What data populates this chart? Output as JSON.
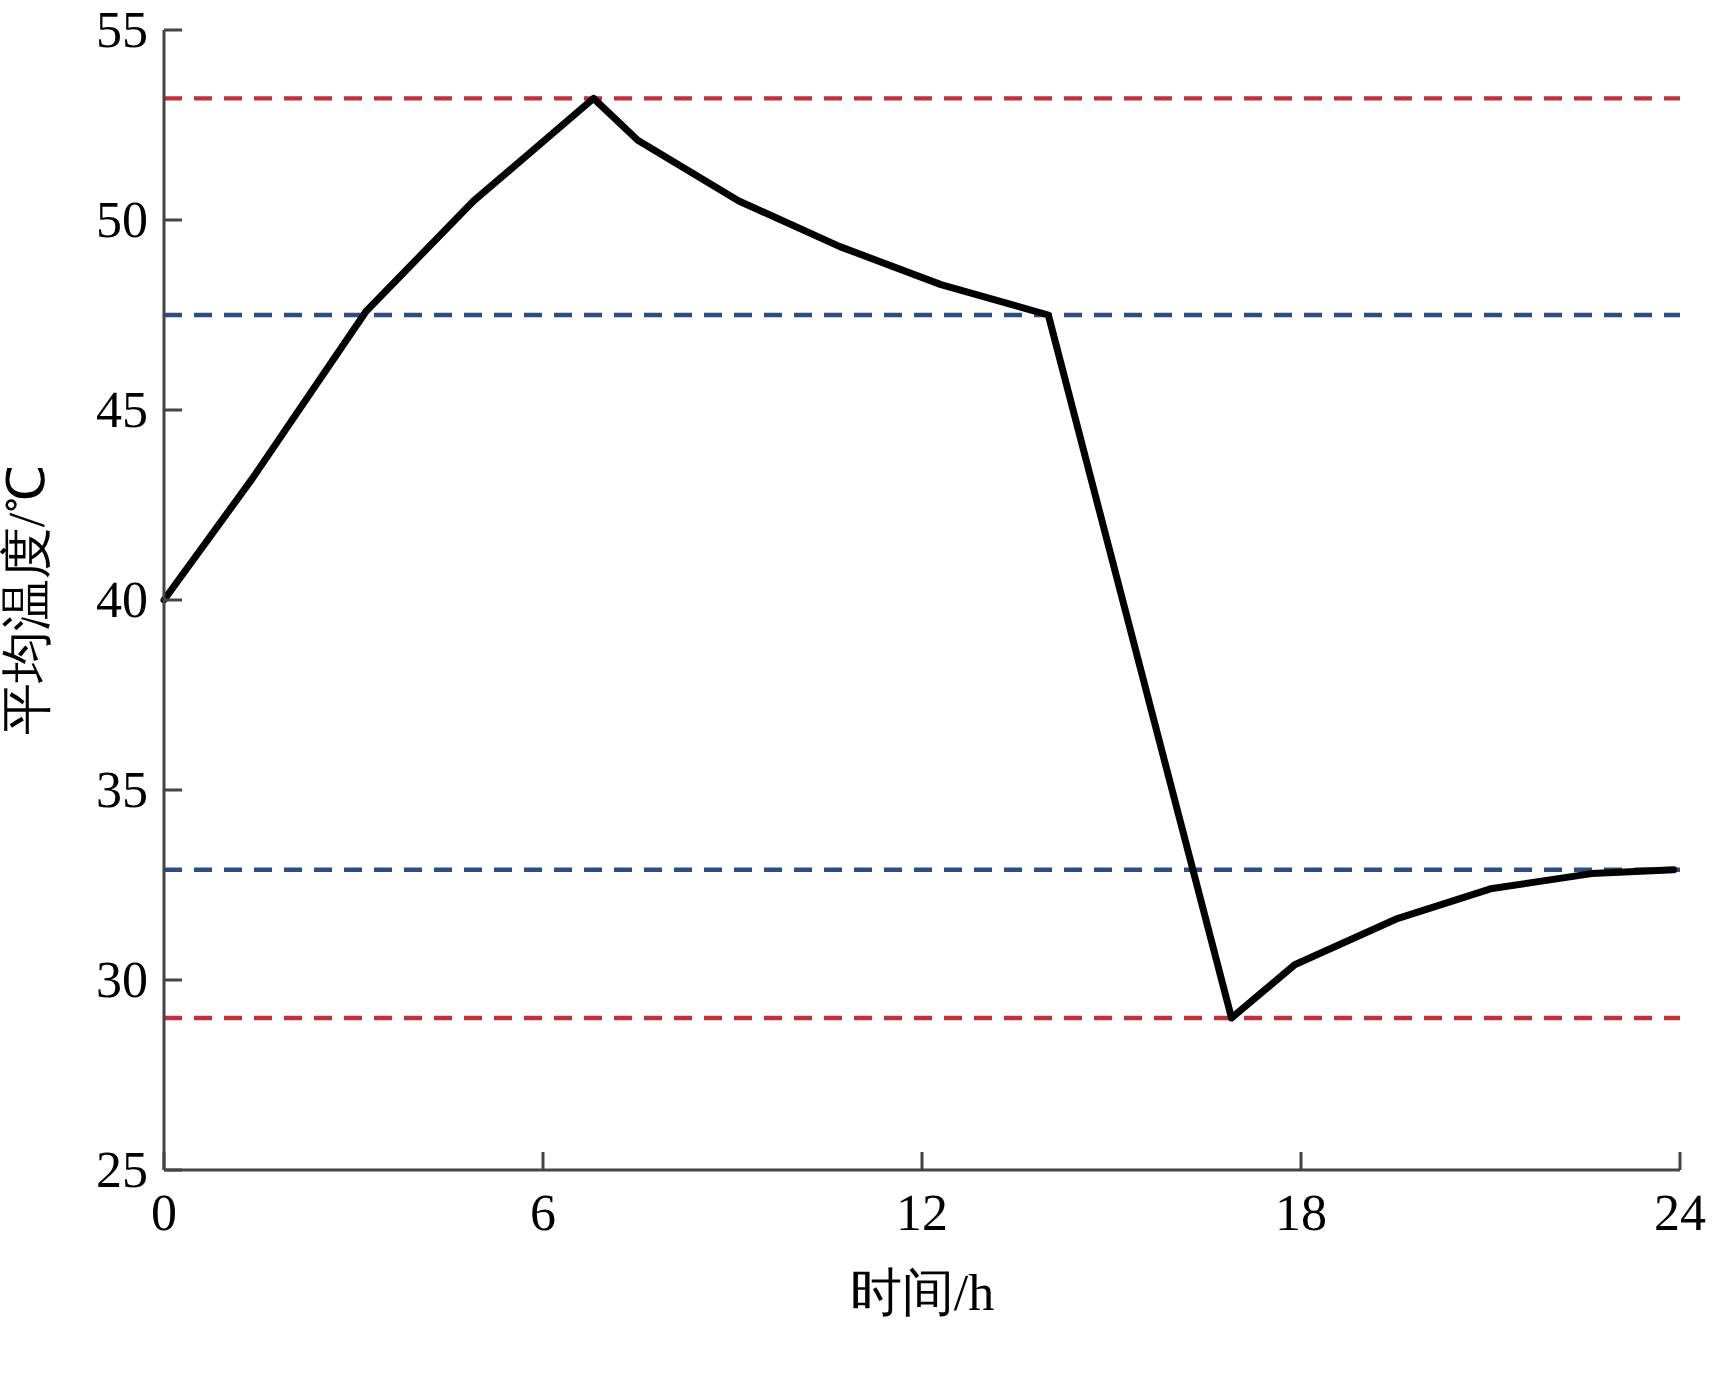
{
  "chart_data": {
    "type": "line",
    "xlabel": "时间/h",
    "ylabel": "平均温度/℃",
    "xlim": [
      0,
      24
    ],
    "ylim": [
      25,
      55
    ],
    "xticks": [
      0,
      6,
      12,
      18,
      24
    ],
    "yticks": [
      25,
      30,
      35,
      40,
      45,
      50,
      55
    ],
    "series": [
      {
        "color": "#000000",
        "x": [
          0,
          1.4,
          3.2,
          4.9,
          6.8,
          7.5,
          9.1,
          10.7,
          12.3,
          14,
          16.9,
          17.9,
          19.5,
          21,
          22.6,
          23.9
        ],
        "values": [
          40,
          43.2,
          47.6,
          50.5,
          53.2,
          52.1,
          50.5,
          49.3,
          48.3,
          47.5,
          29,
          30.4,
          31.6,
          32.4,
          32.8,
          32.9
        ]
      }
    ],
    "ref_lines": [
      {
        "axis": "y",
        "value": 53.2,
        "color": "#c0313c",
        "line_style": "dashed"
      },
      {
        "axis": "y",
        "value": 47.5,
        "color": "#2e4d85",
        "line_style": "dashed"
      },
      {
        "axis": "y",
        "value": 32.9,
        "color": "#2e4d85",
        "line_style": "dashed"
      },
      {
        "axis": "y",
        "value": 29,
        "color": "#c0313c",
        "line_style": "dashed"
      }
    ],
    "marker": "none",
    "line_style": "solid"
  }
}
